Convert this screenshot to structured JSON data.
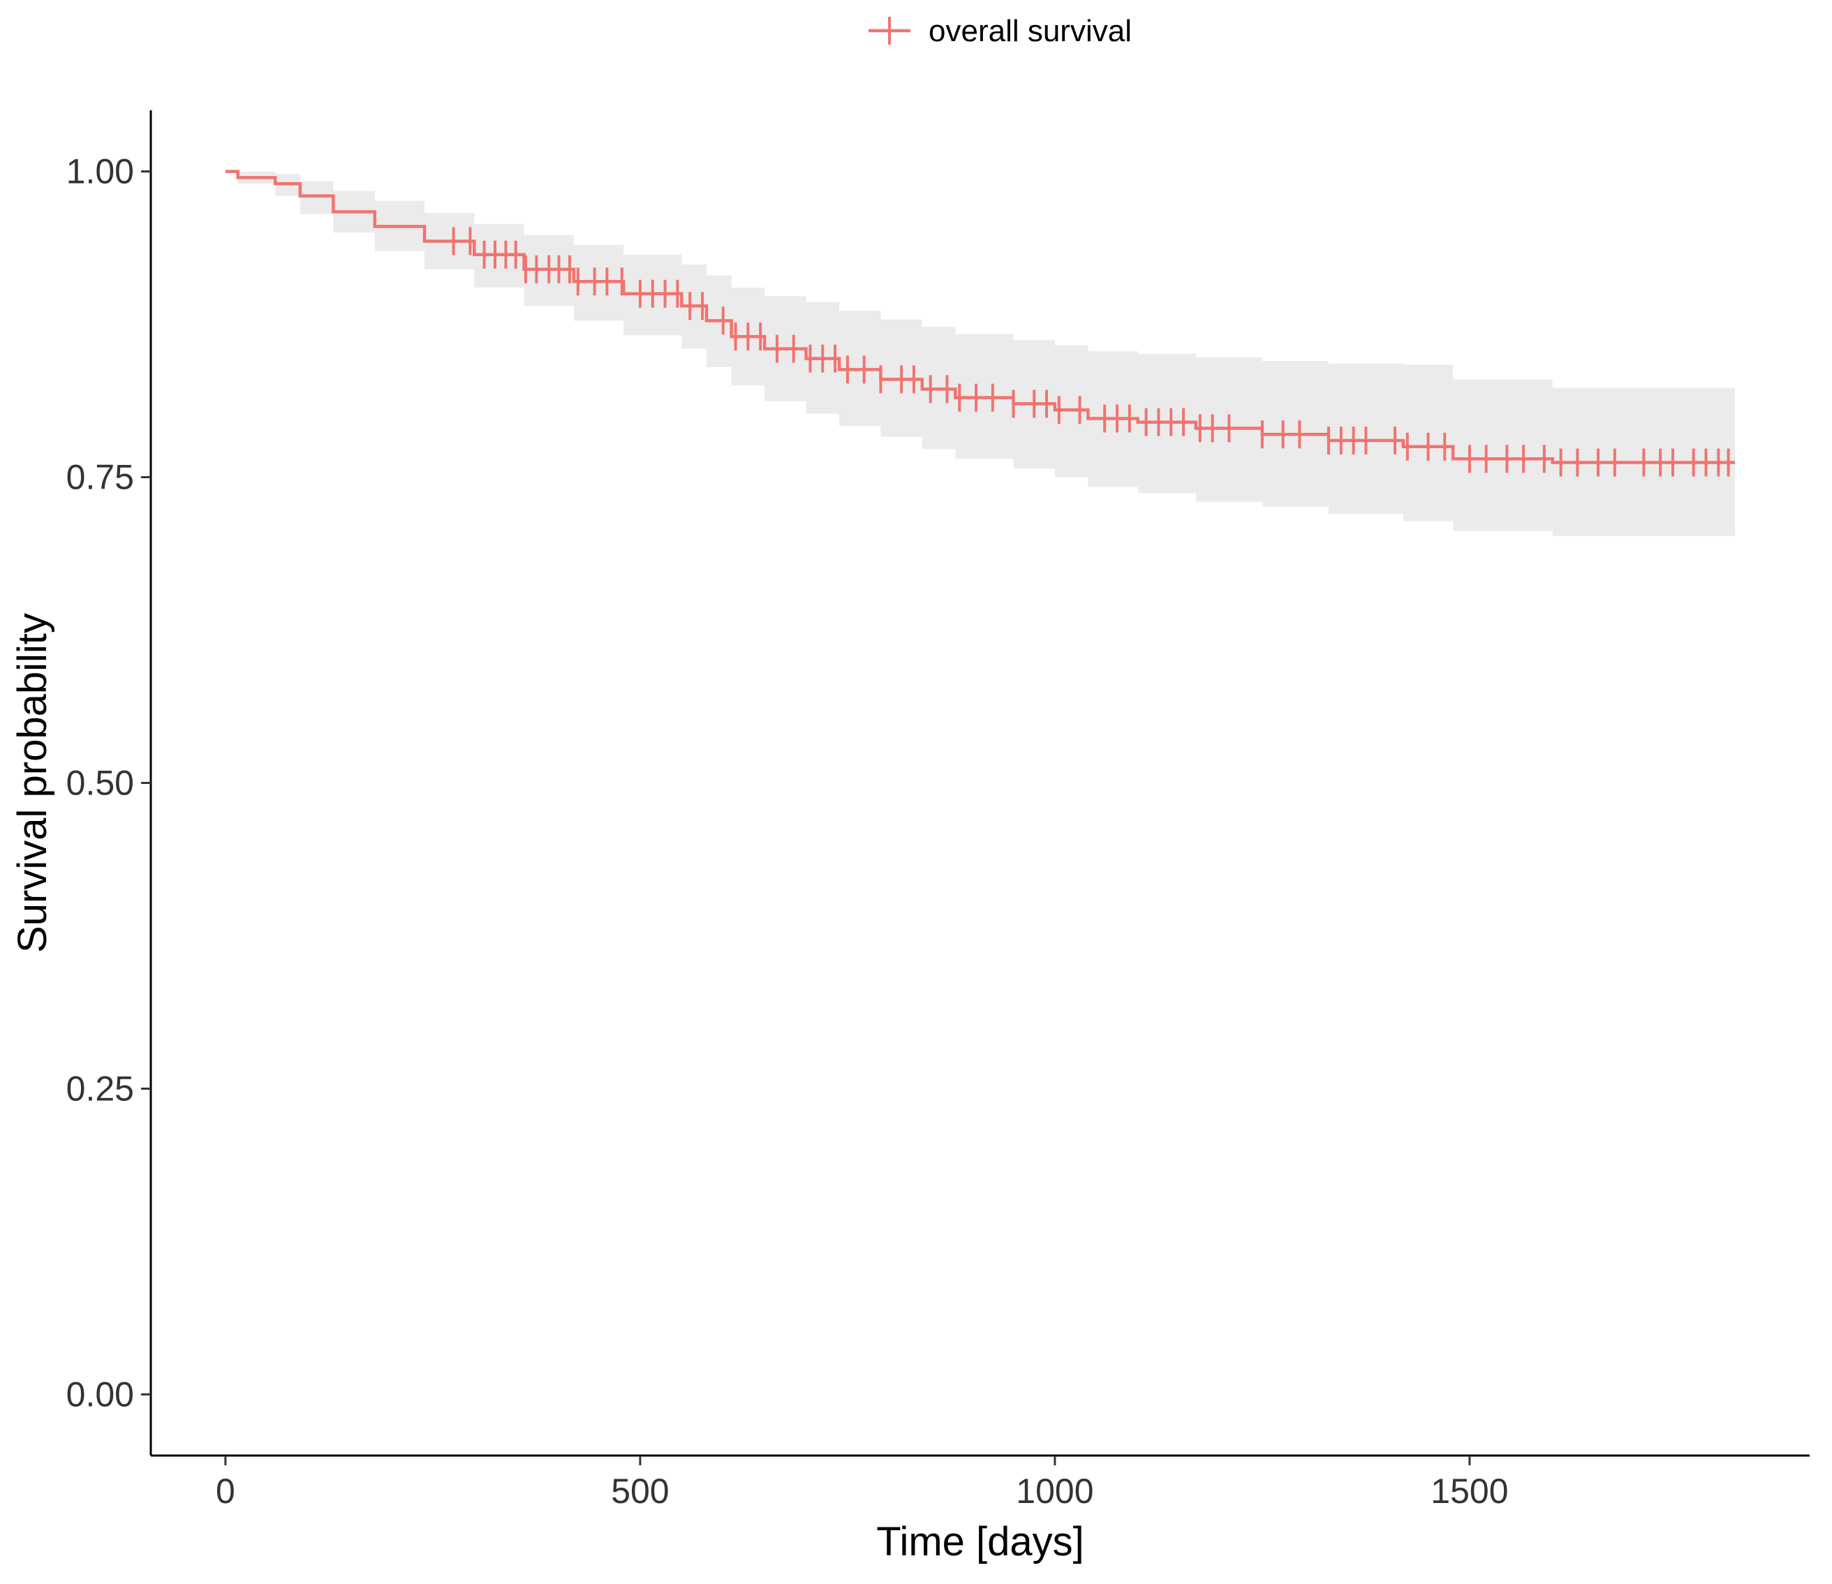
{
  "chart_data": {
    "type": "line",
    "title": "",
    "xlabel": "Time [days]",
    "ylabel": "Survival probability",
    "xlim": [
      -90,
      1910
    ],
    "ylim": [
      -0.05,
      1.05
    ],
    "x_ticks": [
      0,
      500,
      1000,
      1500
    ],
    "x_tick_labels": [
      "0",
      "500",
      "1000",
      "1500"
    ],
    "y_ticks": [
      0,
      0.25,
      0.5,
      0.75,
      1.0
    ],
    "y_tick_labels": [
      "0.00",
      "0.25",
      "0.50",
      "0.75",
      "1.00"
    ],
    "grid": false,
    "legend": {
      "position": "top",
      "entries": [
        "overall survival"
      ]
    },
    "colors": {
      "line": "#F07470",
      "band": "#EBEBEB",
      "axis": "#000000"
    },
    "series": [
      {
        "name": "overall survival",
        "step": true,
        "x": [
          0,
          15,
          60,
          90,
          130,
          180,
          240,
          300,
          360,
          420,
          480,
          550,
          580,
          610,
          650,
          700,
          740,
          790,
          840,
          880,
          950,
          1000,
          1040,
          1100,
          1170,
          1250,
          1330,
          1420,
          1480,
          1600,
          1820
        ],
        "y": [
          1.0,
          0.995,
          0.99,
          0.98,
          0.967,
          0.955,
          0.943,
          0.932,
          0.92,
          0.91,
          0.9,
          0.89,
          0.878,
          0.865,
          0.855,
          0.847,
          0.838,
          0.83,
          0.822,
          0.815,
          0.81,
          0.805,
          0.798,
          0.795,
          0.79,
          0.785,
          0.78,
          0.775,
          0.765,
          0.762,
          0.762
        ],
        "ci_lower": [
          1.0,
          0.99,
          0.98,
          0.965,
          0.95,
          0.935,
          0.92,
          0.905,
          0.89,
          0.878,
          0.866,
          0.855,
          0.84,
          0.825,
          0.812,
          0.802,
          0.792,
          0.783,
          0.773,
          0.765,
          0.757,
          0.75,
          0.742,
          0.737,
          0.73,
          0.726,
          0.72,
          0.714,
          0.706,
          0.702,
          0.702
        ],
        "ci_upper": [
          1.0,
          1.0,
          0.998,
          0.992,
          0.984,
          0.976,
          0.966,
          0.957,
          0.948,
          0.94,
          0.932,
          0.924,
          0.915,
          0.905,
          0.898,
          0.893,
          0.886,
          0.879,
          0.873,
          0.867,
          0.862,
          0.858,
          0.853,
          0.851,
          0.848,
          0.845,
          0.843,
          0.842,
          0.83,
          0.823,
          0.823
        ],
        "censor_x": [
          275,
          295,
          312,
          325,
          338,
          350,
          362,
          375,
          390,
          402,
          415,
          425,
          445,
          460,
          478,
          500,
          515,
          530,
          545,
          560,
          575,
          600,
          615,
          630,
          645,
          665,
          685,
          705,
          720,
          735,
          750,
          770,
          790,
          815,
          830,
          850,
          870,
          885,
          905,
          925,
          950,
          975,
          990,
          1005,
          1030,
          1060,
          1075,
          1090,
          1110,
          1125,
          1140,
          1155,
          1175,
          1190,
          1210,
          1250,
          1275,
          1295,
          1330,
          1345,
          1360,
          1375,
          1410,
          1425,
          1450,
          1470,
          1500,
          1520,
          1545,
          1565,
          1590,
          1610,
          1630,
          1655,
          1675,
          1710,
          1730,
          1745,
          1770,
          1785,
          1800,
          1812
        ]
      }
    ]
  }
}
